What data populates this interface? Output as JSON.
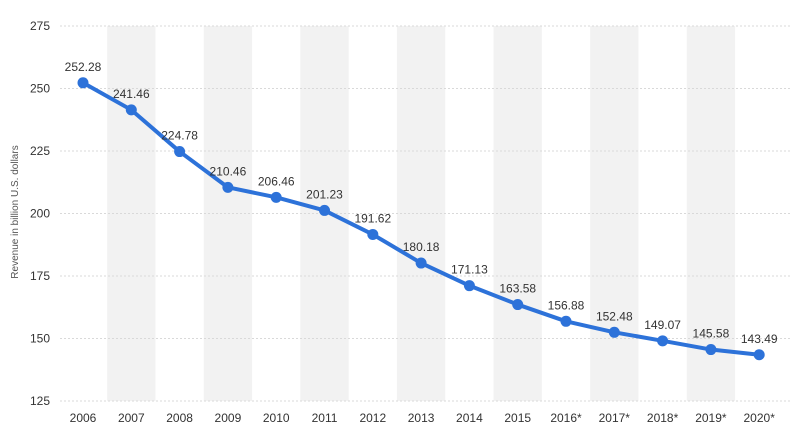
{
  "chart_data": {
    "type": "line",
    "title": "",
    "xlabel": "",
    "ylabel": "Revenue in billion U.S. dollars",
    "categories": [
      "2006",
      "2007",
      "2008",
      "2009",
      "2010",
      "2011",
      "2012",
      "2013",
      "2014",
      "2015",
      "2016*",
      "2017*",
      "2018*",
      "2019*",
      "2020*"
    ],
    "series": [
      {
        "values": [
          252.28,
          241.46,
          224.78,
          210.46,
          206.46,
          201.23,
          191.62,
          180.18,
          171.13,
          163.58,
          156.88,
          152.48,
          149.07,
          145.58,
          143.49
        ],
        "data_labels": [
          "252.28",
          "241.46",
          "224.78",
          "210.46",
          "206.46",
          "201.23",
          "191.62",
          "180.18",
          "171.13",
          "163.58",
          "156.88",
          "152.48",
          "149.07",
          "145.58",
          "143.49"
        ]
      }
    ],
    "ylim": [
      125,
      275
    ],
    "yticks": [
      "125",
      "150",
      "175",
      "200",
      "225",
      "250",
      "275"
    ],
    "grid": true,
    "alternating_column_bands": true,
    "colors": {
      "line": "#2d72d9",
      "band": "#f2f2f2",
      "grid": "#d9d9d9"
    }
  }
}
